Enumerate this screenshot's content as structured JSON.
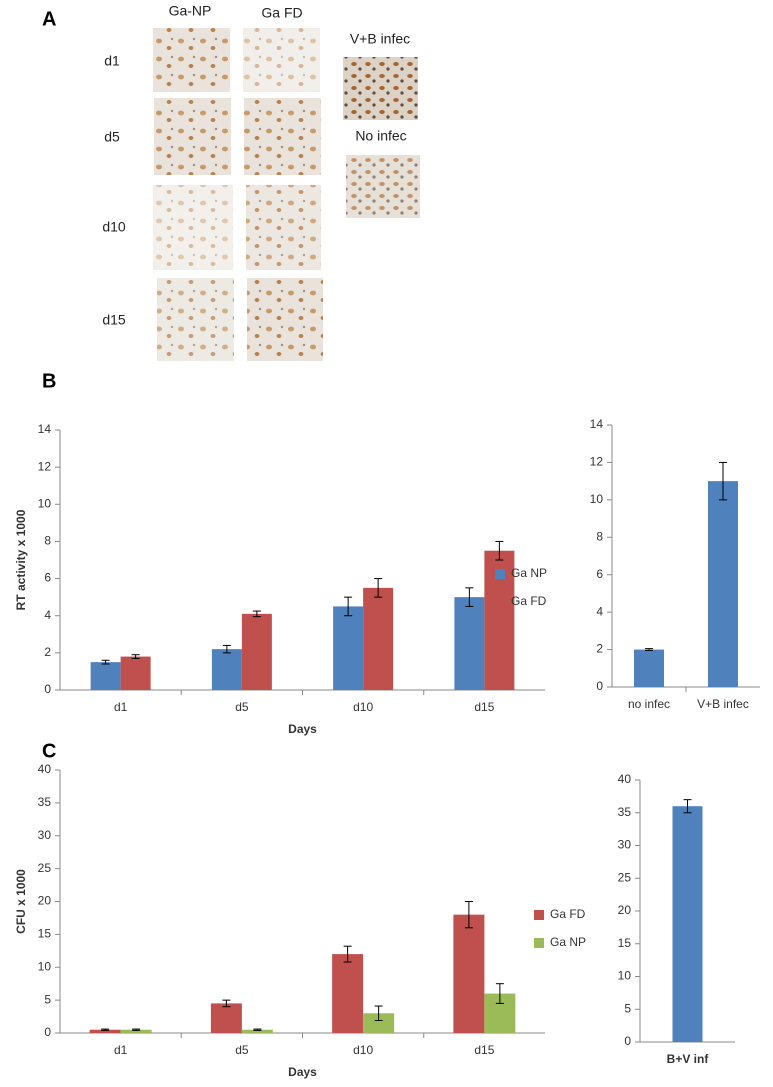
{
  "panel_a": {
    "label": "A",
    "columns": [
      "Ga-NP",
      "Ga FD"
    ],
    "rows": [
      "d1",
      "d5",
      "d10",
      "d15"
    ],
    "controls": [
      "V+B infec",
      "No infec"
    ]
  },
  "chart_data": [
    {
      "type": "bar",
      "panel": "B",
      "y_label": "RT activity x 1000",
      "x_label": "Days",
      "categories": [
        "d1",
        "d5",
        "d10",
        "d15"
      ],
      "series": [
        {
          "name": "Ga NP",
          "color": "#4f81bd",
          "values": [
            1.5,
            2.2,
            4.5,
            5.0
          ],
          "errors": [
            0.1,
            0.2,
            0.5,
            0.5
          ]
        },
        {
          "name": "Ga FD",
          "color": "#c0504d",
          "values": [
            1.8,
            4.1,
            5.5,
            7.5
          ],
          "errors": [
            0.1,
            0.15,
            0.5,
            0.5
          ]
        }
      ],
      "ylim": [
        0,
        14
      ],
      "yticks": [
        0,
        2,
        4,
        6,
        8,
        10,
        12,
        14
      ],
      "legend": "right"
    },
    {
      "type": "bar",
      "categories": [
        "no infec",
        "V+B infec"
      ],
      "values": [
        2,
        11
      ],
      "errors": [
        0.05,
        1
      ],
      "color": "#4f81bd",
      "ylim": [
        0,
        14
      ],
      "yticks": [
        0,
        2,
        4,
        6,
        8,
        10,
        12,
        14
      ]
    },
    {
      "type": "bar",
      "panel": "C",
      "y_label": "CFU x 1000",
      "x_label": "Days",
      "categories": [
        "d1",
        "d5",
        "d10",
        "d15"
      ],
      "series": [
        {
          "name": "Ga FD",
          "color": "#c0504d",
          "values": [
            0.5,
            4.5,
            12,
            18
          ],
          "errors": [
            0.1,
            0.5,
            1.2,
            2
          ]
        },
        {
          "name": "Ga NP",
          "color": "#9bbb59",
          "values": [
            0.5,
            0.5,
            3,
            6
          ],
          "errors": [
            0.1,
            0.1,
            1.1,
            1.5
          ]
        }
      ],
      "ylim": [
        0,
        40
      ],
      "yticks": [
        0,
        5,
        10,
        15,
        20,
        25,
        30,
        35,
        40
      ],
      "legend": "right"
    },
    {
      "type": "bar",
      "categories": [
        "B+V inf"
      ],
      "values": [
        36
      ],
      "errors": [
        1
      ],
      "color": "#4f81bd",
      "ylim": [
        0,
        40
      ],
      "yticks": [
        0,
        5,
        10,
        15,
        20,
        25,
        30,
        35,
        40
      ]
    }
  ]
}
